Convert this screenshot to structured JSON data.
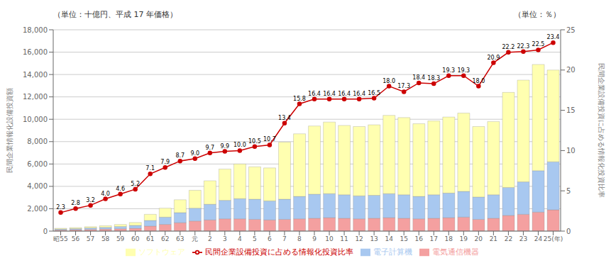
{
  "chart_data": {
    "type": "bar",
    "title": "（単位：十億円、平成 17 年価格）",
    "subtitle": "（単位：％）",
    "ylabel": "民間企業情報化設備投資額",
    "y2label": "民間企業設備投資に占める情報化投資比率",
    "categories": [
      "昭55",
      "56",
      "57",
      "58",
      "59",
      "60",
      "61",
      "62",
      "63",
      "元",
      "2",
      "3",
      "4",
      "5",
      "6",
      "7",
      "8",
      "9",
      "10",
      "11",
      "12",
      "13",
      "14",
      "15",
      "16",
      "17",
      "18",
      "19",
      "20",
      "21",
      "22",
      "23",
      "24",
      "25(年)"
    ],
    "stacked": true,
    "grid": true,
    "legend": "bottom",
    "ylim": [
      0,
      18000
    ],
    "yticks": [
      0,
      {
        "value": 2000,
        "label": "2,000"
      },
      {
        "value": 4000,
        "label": "4,000"
      },
      {
        "value": 6000,
        "label": "6,000"
      },
      {
        "value": 8000,
        "label": "8,000"
      },
      {
        "value": 10000,
        "label": "10,000"
      },
      {
        "value": 12000,
        "label": "12,000"
      },
      {
        "value": 14000,
        "label": "14,000"
      },
      {
        "value": 16000,
        "label": "16,000"
      },
      {
        "value": 18000,
        "label": "18,000"
      }
    ],
    "y2lim": [
      0,
      25
    ],
    "y2ticks": [
      0,
      5,
      10,
      15,
      20,
      25
    ],
    "series": [
      {
        "name": "電気通信機器",
        "type": "bar",
        "color": "#f4a0a0",
        "values": [
          100,
          120,
          150,
          180,
          210,
          250,
          450,
          600,
          750,
          900,
          1000,
          1100,
          1100,
          1050,
          1000,
          1050,
          1100,
          1150,
          1200,
          1150,
          1100,
          1150,
          1200,
          1150,
          1100,
          1150,
          1200,
          1250,
          1050,
          1150,
          1400,
          1500,
          1700,
          1900
        ]
      },
      {
        "name": "電子計算機",
        "type": "bar",
        "color": "#a8c8f0",
        "values": [
          80,
          100,
          130,
          160,
          200,
          260,
          500,
          650,
          900,
          1150,
          1400,
          1650,
          1800,
          1800,
          1700,
          1800,
          2000,
          2150,
          2150,
          2100,
          2050,
          2050,
          2150,
          2100,
          2000,
          2100,
          2200,
          2300,
          2000,
          2100,
          2500,
          2900,
          3700,
          4300
        ]
      },
      {
        "name": "ソフトウェア",
        "type": "bar",
        "color": "#ffffb0",
        "values": [
          70,
          90,
          110,
          140,
          180,
          260,
          550,
          800,
          1150,
          1600,
          2100,
          2800,
          3100,
          2900,
          2950,
          5100,
          5600,
          6100,
          6400,
          6200,
          6200,
          6300,
          7000,
          6900,
          6500,
          6600,
          6800,
          7000,
          6300,
          6550,
          8500,
          9100,
          9500,
          8200
        ]
      },
      {
        "name": "民間企業設備投資に占める情報化投資比率",
        "type": "line",
        "axis": "y2",
        "color": "#cc0000",
        "marker": "circle",
        "data_labels": true,
        "values": [
          2.3,
          2.8,
          3.2,
          4.0,
          4.6,
          5.2,
          7.1,
          7.9,
          8.7,
          9.0,
          9.7,
          9.9,
          10.0,
          10.5,
          10.7,
          13.4,
          15.8,
          16.4,
          16.4,
          16.4,
          16.4,
          16.5,
          18.0,
          17.3,
          18.4,
          18.3,
          19.3,
          19.3,
          18.0,
          20.9,
          22.2,
          22.3,
          22.5,
          23.4
        ],
        "value_labels": [
          "2.3",
          "2.8",
          "3.2",
          "4.0",
          "4.6",
          "5.2",
          "7.1",
          "7.9",
          "8.7",
          "9.0",
          "9.7",
          "9.9",
          "10.0",
          "10.5",
          "10.7",
          "13.4",
          "15.8",
          "16.4",
          "16.4",
          "16.4",
          "16.4",
          "16.5",
          "18.0",
          "17.3",
          "18.4",
          "18.3",
          "19.3",
          "19.3",
          "18.0",
          "20.9",
          "22.2",
          "22.3",
          "22.5",
          "23.4"
        ]
      }
    ]
  }
}
